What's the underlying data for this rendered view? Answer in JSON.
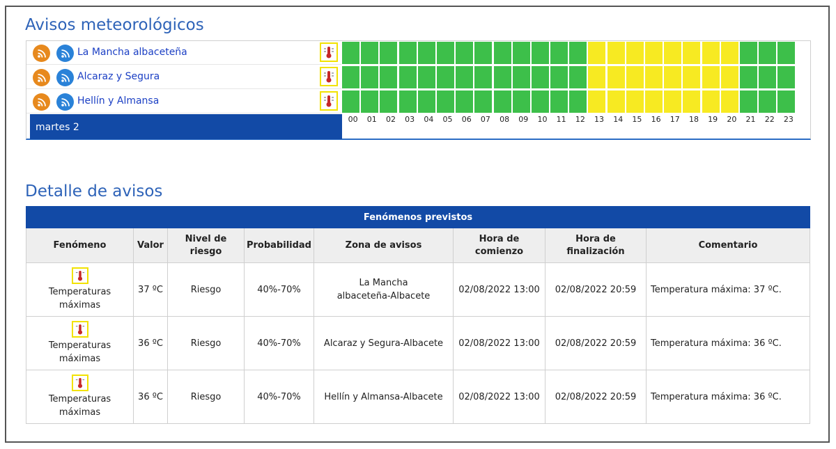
{
  "titles": {
    "warnings": "Avisos meteorológicos",
    "details": "Detalle de avisos"
  },
  "timeline": {
    "day_label": "martes 2",
    "hours": [
      "00",
      "01",
      "02",
      "03",
      "04",
      "05",
      "06",
      "07",
      "08",
      "09",
      "10",
      "11",
      "12",
      "13",
      "14",
      "15",
      "16",
      "17",
      "18",
      "19",
      "20",
      "21",
      "22",
      "23"
    ],
    "zones": [
      {
        "name": "La Mancha albaceteña",
        "levels": [
          "green",
          "green",
          "green",
          "green",
          "green",
          "green",
          "green",
          "green",
          "green",
          "green",
          "green",
          "green",
          "green",
          "yellow",
          "yellow",
          "yellow",
          "yellow",
          "yellow",
          "yellow",
          "yellow",
          "yellow",
          "green",
          "green",
          "green"
        ]
      },
      {
        "name": "Alcaraz y Segura",
        "levels": [
          "green",
          "green",
          "green",
          "green",
          "green",
          "green",
          "green",
          "green",
          "green",
          "green",
          "green",
          "green",
          "green",
          "yellow",
          "yellow",
          "yellow",
          "yellow",
          "yellow",
          "yellow",
          "yellow",
          "yellow",
          "green",
          "green",
          "green"
        ]
      },
      {
        "name": "Hellín y Almansa",
        "levels": [
          "green",
          "green",
          "green",
          "green",
          "green",
          "green",
          "green",
          "green",
          "green",
          "green",
          "green",
          "green",
          "green",
          "yellow",
          "yellow",
          "yellow",
          "yellow",
          "yellow",
          "yellow",
          "yellow",
          "yellow",
          "green",
          "green",
          "green"
        ]
      }
    ],
    "colors": {
      "green": "#3dbf4a",
      "yellow": "#f7ea22",
      "rss_orange": "#e7891d",
      "rss_blue": "#2a82d8",
      "day_bar": "#124aa6"
    },
    "icons": {
      "rss": "rss-feed-icon",
      "phenomenon": "thermometer-icon"
    }
  },
  "detail": {
    "caption": "Fenómenos previstos",
    "headers": {
      "fenomeno": "Fenómeno",
      "valor": "Valor",
      "nivel": "Nivel de riesgo",
      "prob": "Probabilidad",
      "zona": "Zona de avisos",
      "inicio": "Hora de comienzo",
      "fin": "Hora de finalización",
      "comentario": "Comentario"
    },
    "rows": [
      {
        "fenomeno": "Temperaturas máximas",
        "valor": "37 ºC",
        "nivel": "Riesgo",
        "prob": "40%-70%",
        "zona": "La Mancha albaceteña-Albacete",
        "inicio": "02/08/2022 13:00",
        "fin": "02/08/2022 20:59",
        "comentario": "Temperatura máxima: 37 ºC."
      },
      {
        "fenomeno": "Temperaturas máximas",
        "valor": "36 ºC",
        "nivel": "Riesgo",
        "prob": "40%-70%",
        "zona": "Alcaraz y Segura-Albacete",
        "inicio": "02/08/2022 13:00",
        "fin": "02/08/2022 20:59",
        "comentario": "Temperatura máxima: 36 ºC."
      },
      {
        "fenomeno": "Temperaturas máximas",
        "valor": "36 ºC",
        "nivel": "Riesgo",
        "prob": "40%-70%",
        "zona": "Hellín y Almansa-Albacete",
        "inicio": "02/08/2022 13:00",
        "fin": "02/08/2022 20:59",
        "comentario": "Temperatura máxima: 36 ºC."
      }
    ]
  }
}
